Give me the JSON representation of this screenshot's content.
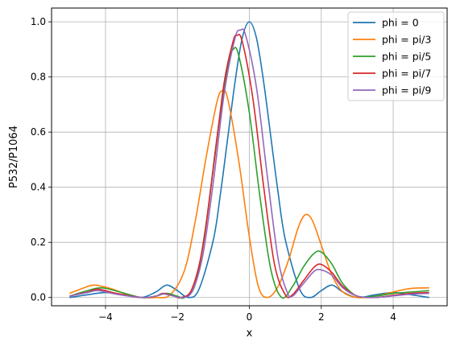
{
  "chart_data": {
    "type": "line",
    "xlabel": "x",
    "ylabel": "P532/P1064",
    "xlim": [
      -5.5,
      5.5
    ],
    "ylim": [
      -0.03,
      1.05
    ],
    "xticks": [
      -4,
      -2,
      0,
      2,
      4
    ],
    "yticks": [
      0.0,
      0.2,
      0.4,
      0.6,
      0.8,
      1.0
    ],
    "xtick_labels": [
      "−4",
      "−2",
      "0",
      "2",
      "4"
    ],
    "ytick_labels": [
      "0.0",
      "0.2",
      "0.4",
      "0.6",
      "0.8",
      "1.0"
    ],
    "grid": true,
    "legend_position": "top-right",
    "series": [
      {
        "name": "phi = 0",
        "color": "#1f77b4",
        "points": [
          [
            -5,
            0.0
          ],
          [
            -4.5,
            0.01
          ],
          [
            -4,
            0.018
          ],
          [
            -3.5,
            0.01
          ],
          [
            -3,
            0.0
          ],
          [
            -2.6,
            0.02
          ],
          [
            -2.3,
            0.045
          ],
          [
            -2,
            0.025
          ],
          [
            -1.7,
            0.0
          ],
          [
            -1.4,
            0.03
          ],
          [
            -1,
            0.21
          ],
          [
            -0.8,
            0.38
          ],
          [
            -0.6,
            0.58
          ],
          [
            -0.4,
            0.78
          ],
          [
            -0.2,
            0.94
          ],
          [
            0,
            1.0
          ],
          [
            0.2,
            0.94
          ],
          [
            0.4,
            0.78
          ],
          [
            0.6,
            0.58
          ],
          [
            0.8,
            0.38
          ],
          [
            1,
            0.21
          ],
          [
            1.4,
            0.03
          ],
          [
            1.7,
            0.0
          ],
          [
            2,
            0.025
          ],
          [
            2.3,
            0.045
          ],
          [
            2.6,
            0.02
          ],
          [
            3,
            0.0
          ],
          [
            3.5,
            0.01
          ],
          [
            4,
            0.018
          ],
          [
            4.5,
            0.01
          ],
          [
            5,
            0.0
          ]
        ]
      },
      {
        "name": "phi = pi/3",
        "color": "#ff7f0e",
        "points": [
          [
            -5,
            0.015
          ],
          [
            -4.6,
            0.035
          ],
          [
            -4.3,
            0.045
          ],
          [
            -3.8,
            0.03
          ],
          [
            -3.3,
            0.005
          ],
          [
            -3,
            0.0
          ],
          [
            -2.6,
            0.0
          ],
          [
            -2.2,
            0.01
          ],
          [
            -1.8,
            0.1
          ],
          [
            -1.5,
            0.28
          ],
          [
            -1.2,
            0.51
          ],
          [
            -0.9,
            0.71
          ],
          [
            -0.75,
            0.75
          ],
          [
            -0.6,
            0.72
          ],
          [
            -0.3,
            0.5
          ],
          [
            0,
            0.22
          ],
          [
            0.25,
            0.04
          ],
          [
            0.5,
            0.0
          ],
          [
            0.8,
            0.04
          ],
          [
            1.1,
            0.14
          ],
          [
            1.35,
            0.25
          ],
          [
            1.55,
            0.3
          ],
          [
            1.75,
            0.28
          ],
          [
            2,
            0.19
          ],
          [
            2.3,
            0.08
          ],
          [
            2.6,
            0.02
          ],
          [
            3,
            0.0
          ],
          [
            3.5,
            0.005
          ],
          [
            4,
            0.02
          ],
          [
            4.5,
            0.033
          ],
          [
            5,
            0.035
          ]
        ]
      },
      {
        "name": "phi = pi/5",
        "color": "#2ca02c",
        "points": [
          [
            -5,
            0.005
          ],
          [
            -4.5,
            0.025
          ],
          [
            -4.1,
            0.035
          ],
          [
            -3.6,
            0.02
          ],
          [
            -3,
            0.0
          ],
          [
            -2.6,
            0.005
          ],
          [
            -2.3,
            0.015
          ],
          [
            -2,
            0.005
          ],
          [
            -1.8,
            0.0
          ],
          [
            -1.5,
            0.05
          ],
          [
            -1.2,
            0.27
          ],
          [
            -0.9,
            0.58
          ],
          [
            -0.6,
            0.84
          ],
          [
            -0.45,
            0.9
          ],
          [
            -0.3,
            0.88
          ],
          [
            0,
            0.67
          ],
          [
            0.3,
            0.36
          ],
          [
            0.6,
            0.1
          ],
          [
            0.9,
            0.0
          ],
          [
            1.2,
            0.04
          ],
          [
            1.5,
            0.11
          ],
          [
            1.8,
            0.16
          ],
          [
            2,
            0.165
          ],
          [
            2.3,
            0.12
          ],
          [
            2.6,
            0.05
          ],
          [
            3,
            0.005
          ],
          [
            3.5,
            0.005
          ],
          [
            4,
            0.015
          ],
          [
            4.5,
            0.02
          ],
          [
            5,
            0.025
          ]
        ]
      },
      {
        "name": "phi = pi/7",
        "color": "#d62728",
        "points": [
          [
            -5,
            0.005
          ],
          [
            -4.5,
            0.02
          ],
          [
            -4.2,
            0.03
          ],
          [
            -3.7,
            0.015
          ],
          [
            -3,
            0.0
          ],
          [
            -2.6,
            0.005
          ],
          [
            -2.4,
            0.015
          ],
          [
            -2.1,
            0.005
          ],
          [
            -1.9,
            0.0
          ],
          [
            -1.6,
            0.03
          ],
          [
            -1.3,
            0.18
          ],
          [
            -1,
            0.47
          ],
          [
            -0.7,
            0.78
          ],
          [
            -0.45,
            0.93
          ],
          [
            -0.35,
            0.95
          ],
          [
            -0.2,
            0.93
          ],
          [
            0.1,
            0.72
          ],
          [
            0.4,
            0.4
          ],
          [
            0.7,
            0.12
          ],
          [
            1,
            0.01
          ],
          [
            1.2,
            0.01
          ],
          [
            1.5,
            0.06
          ],
          [
            1.8,
            0.11
          ],
          [
            2,
            0.12
          ],
          [
            2.3,
            0.09
          ],
          [
            2.6,
            0.04
          ],
          [
            3,
            0.005
          ],
          [
            3.5,
            0.0
          ],
          [
            4,
            0.008
          ],
          [
            4.5,
            0.015
          ],
          [
            5,
            0.018
          ]
        ]
      },
      {
        "name": "phi = pi/9",
        "color": "#9467bd",
        "points": [
          [
            -5,
            0.005
          ],
          [
            -4.5,
            0.018
          ],
          [
            -4.2,
            0.025
          ],
          [
            -3.7,
            0.012
          ],
          [
            -3,
            0.0
          ],
          [
            -2.6,
            0.005
          ],
          [
            -2.4,
            0.013
          ],
          [
            -2.1,
            0.005
          ],
          [
            -1.9,
            0.0
          ],
          [
            -1.6,
            0.02
          ],
          [
            -1.3,
            0.15
          ],
          [
            -1,
            0.42
          ],
          [
            -0.7,
            0.74
          ],
          [
            -0.4,
            0.94
          ],
          [
            -0.25,
            0.97
          ],
          [
            -0.1,
            0.95
          ],
          [
            0.2,
            0.76
          ],
          [
            0.5,
            0.44
          ],
          [
            0.8,
            0.14
          ],
          [
            1.05,
            0.02
          ],
          [
            1.2,
            0.005
          ],
          [
            1.5,
            0.05
          ],
          [
            1.8,
            0.095
          ],
          [
            2,
            0.1
          ],
          [
            2.3,
            0.08
          ],
          [
            2.6,
            0.035
          ],
          [
            3,
            0.005
          ],
          [
            3.5,
            0.0
          ],
          [
            4,
            0.006
          ],
          [
            4.5,
            0.012
          ],
          [
            5,
            0.015
          ]
        ]
      }
    ]
  }
}
